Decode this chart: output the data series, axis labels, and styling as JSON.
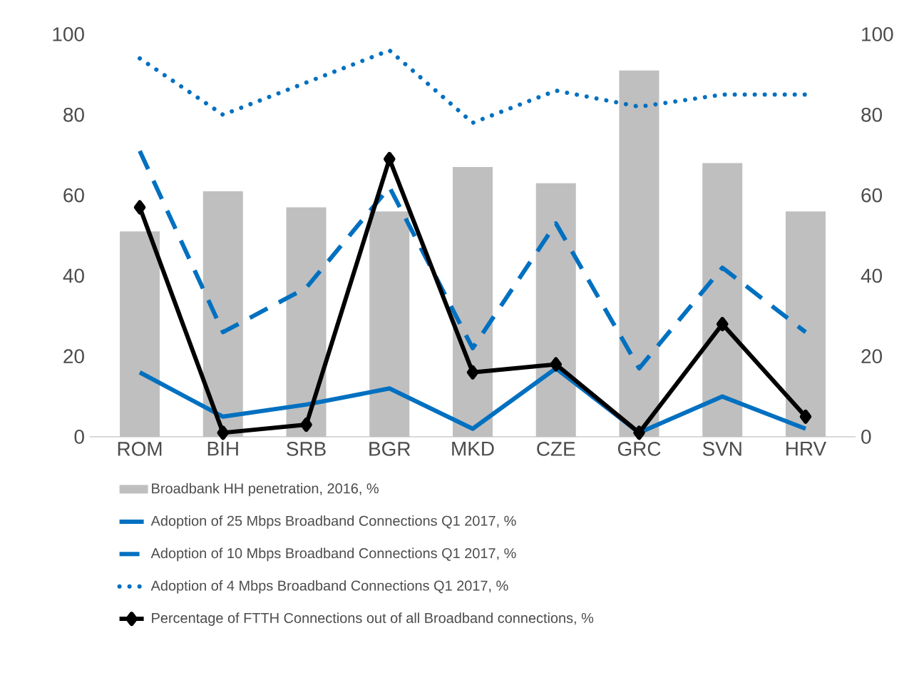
{
  "chart_data": {
    "type": "line",
    "categories": [
      "ROM",
      "BIH",
      "SRB",
      "BGR",
      "MKD",
      "CZE",
      "GRC",
      "SVN",
      "HRV"
    ],
    "series": [
      {
        "name": "Broadbank HH penetration, 2016, %",
        "type": "bar",
        "color": "#bfbfbf",
        "values": [
          51,
          61,
          57,
          56,
          67,
          63,
          91,
          68,
          56
        ]
      },
      {
        "name": "Adoption of 25 Mbps Broadband Connections Q1 2017, %",
        "color": "#0070c0",
        "line_style": "solid",
        "values": [
          16,
          5,
          8,
          12,
          2,
          17,
          1,
          10,
          2
        ]
      },
      {
        "name": "Adoption of 10 Mbps Broadband Connections Q1 2017, %",
        "color": "#0070c0",
        "line_style": "dashed",
        "values": [
          71,
          26,
          37,
          62,
          22,
          53,
          17,
          42,
          26
        ]
      },
      {
        "name": "Adoption of 4 Mbps Broadband Connections Q1 2017, %",
        "color": "#0070c0",
        "line_style": "dotted",
        "values": [
          94,
          80,
          88,
          96,
          78,
          86,
          82,
          85,
          85
        ]
      },
      {
        "name": "Percentage of FTTH Connections out of all Broadband connections, %",
        "color": "#000000",
        "line_style": "solid",
        "marker": "diamond",
        "values": [
          57,
          1,
          3,
          69,
          16,
          18,
          1,
          28,
          5
        ]
      }
    ],
    "ylim": [
      0,
      100
    ],
    "yticks": [
      0,
      20,
      40,
      60,
      80,
      100
    ],
    "y2lim": [
      0,
      100
    ],
    "y2ticks": [
      0,
      20,
      40,
      60,
      80,
      100
    ],
    "grid": false,
    "legend": "bottom"
  }
}
